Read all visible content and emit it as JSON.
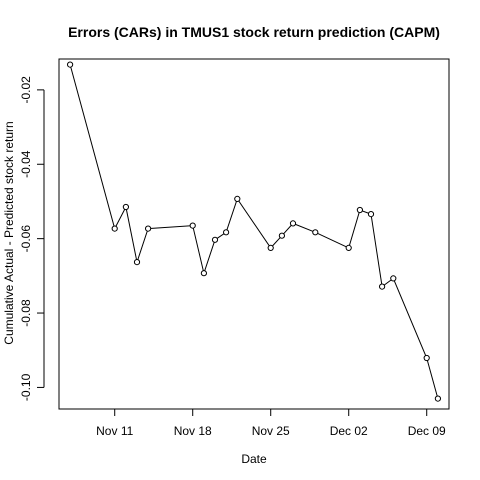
{
  "chart_data": {
    "type": "line",
    "title": "Errors (CARs) in TMUS1 stock return prediction (CAPM)",
    "xlabel": "Date",
    "ylabel": "Cumulative Actual - Predicted stock return",
    "x_ticks": [
      {
        "date": "2019-11-11",
        "label": "Nov 11"
      },
      {
        "date": "2019-11-18",
        "label": "Nov 18"
      },
      {
        "date": "2019-11-25",
        "label": "Nov 25"
      },
      {
        "date": "2019-12-02",
        "label": "Dec 02"
      },
      {
        "date": "2019-12-09",
        "label": "Dec 09"
      }
    ],
    "y_ticks": [
      -0.1,
      -0.08,
      -0.06,
      -0.04,
      -0.02
    ],
    "y_tick_labels": [
      "-0.10",
      "-0.08",
      "-0.06",
      "-0.04",
      "-0.02"
    ],
    "xlim": [
      "2019-11-06",
      "2019-12-11"
    ],
    "ylim": [
      -0.1058,
      -0.0117
    ],
    "grid": false,
    "legend": "none",
    "points": [
      {
        "x": "2019-11-07",
        "y": -0.0132
      },
      {
        "x": "2019-11-11",
        "y": -0.0573
      },
      {
        "x": "2019-11-12",
        "y": -0.0515
      },
      {
        "x": "2019-11-13",
        "y": -0.0663
      },
      {
        "x": "2019-11-14",
        "y": -0.0573
      },
      {
        "x": "2019-11-18",
        "y": -0.0565
      },
      {
        "x": "2019-11-19",
        "y": -0.0693
      },
      {
        "x": "2019-11-20",
        "y": -0.0603
      },
      {
        "x": "2019-11-21",
        "y": -0.0583
      },
      {
        "x": "2019-11-22",
        "y": -0.0493
      },
      {
        "x": "2019-11-25",
        "y": -0.0625
      },
      {
        "x": "2019-11-26",
        "y": -0.0592
      },
      {
        "x": "2019-11-27",
        "y": -0.0559
      },
      {
        "x": "2019-11-29",
        "y": -0.0583
      },
      {
        "x": "2019-12-02",
        "y": -0.0625
      },
      {
        "x": "2019-12-03",
        "y": -0.0523
      },
      {
        "x": "2019-12-04",
        "y": -0.0534
      },
      {
        "x": "2019-12-05",
        "y": -0.0729
      },
      {
        "x": "2019-12-06",
        "y": -0.0707
      },
      {
        "x": "2019-12-09",
        "y": -0.0921
      },
      {
        "x": "2019-12-10",
        "y": -0.103
      }
    ]
  }
}
